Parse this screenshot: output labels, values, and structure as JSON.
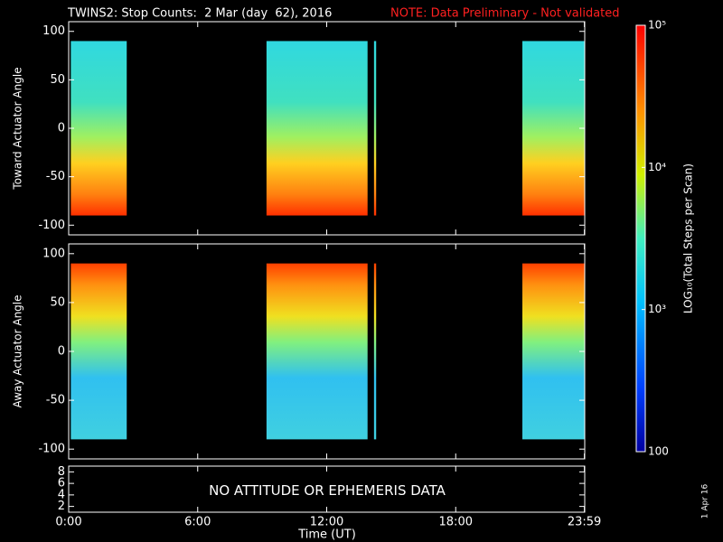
{
  "title": "TWINS2: Stop Counts:  2 Mar (day  62), 2016",
  "note": "NOTE: Data Preliminary - Not validated",
  "date_stamp": "1 Apr 16",
  "chart_data": [
    {
      "type": "heatmap",
      "ylabel": "Toward Actuator Angle",
      "ylim": [
        -110,
        110
      ],
      "yticks": [
        -100,
        -50,
        0,
        50,
        100
      ],
      "xlim": [
        0,
        24
      ],
      "angle_range": [
        -90,
        90
      ],
      "coverage": [
        [
          0.1,
          2.7
        ],
        [
          9.2,
          13.9
        ],
        [
          14.2,
          14.3
        ],
        [
          21.1,
          24
        ]
      ]
    },
    {
      "type": "heatmap",
      "ylabel": "Away Actuator Angle",
      "ylim": [
        -110,
        110
      ],
      "yticks": [
        -100,
        -50,
        0,
        50,
        100
      ],
      "xlim": [
        0,
        24
      ],
      "angle_range": [
        -90,
        90
      ],
      "coverage": [
        [
          0.1,
          2.7
        ],
        [
          9.2,
          13.9
        ],
        [
          14.2,
          14.3
        ],
        [
          21.1,
          24
        ]
      ]
    },
    {
      "type": "empty",
      "annotation": "NO ATTITUDE OR EPHEMERIS DATA",
      "ylim": [
        1,
        9
      ],
      "yticks": [
        2,
        4,
        6,
        8
      ],
      "xlim": [
        0,
        24
      ],
      "xlabel": "Time (UT)",
      "xticks": [
        {
          "value": 0,
          "label": "0:00"
        },
        {
          "value": 6,
          "label": "6:00"
        },
        {
          "value": 12,
          "label": "12:00"
        },
        {
          "value": 18,
          "label": "18:00"
        },
        {
          "value": 23.983,
          "label": "23:59"
        }
      ]
    },
    {
      "type": "colorbar",
      "label": "LOG₁₀(Total Steps per Scan)",
      "log": true,
      "clim": [
        100,
        100000
      ],
      "ticks": [
        100,
        {
          "value": 1000,
          "label": "10³"
        },
        {
          "value": 10000,
          "label": "10⁴"
        },
        {
          "value": 100000,
          "label": "10⁵"
        }
      ]
    }
  ]
}
